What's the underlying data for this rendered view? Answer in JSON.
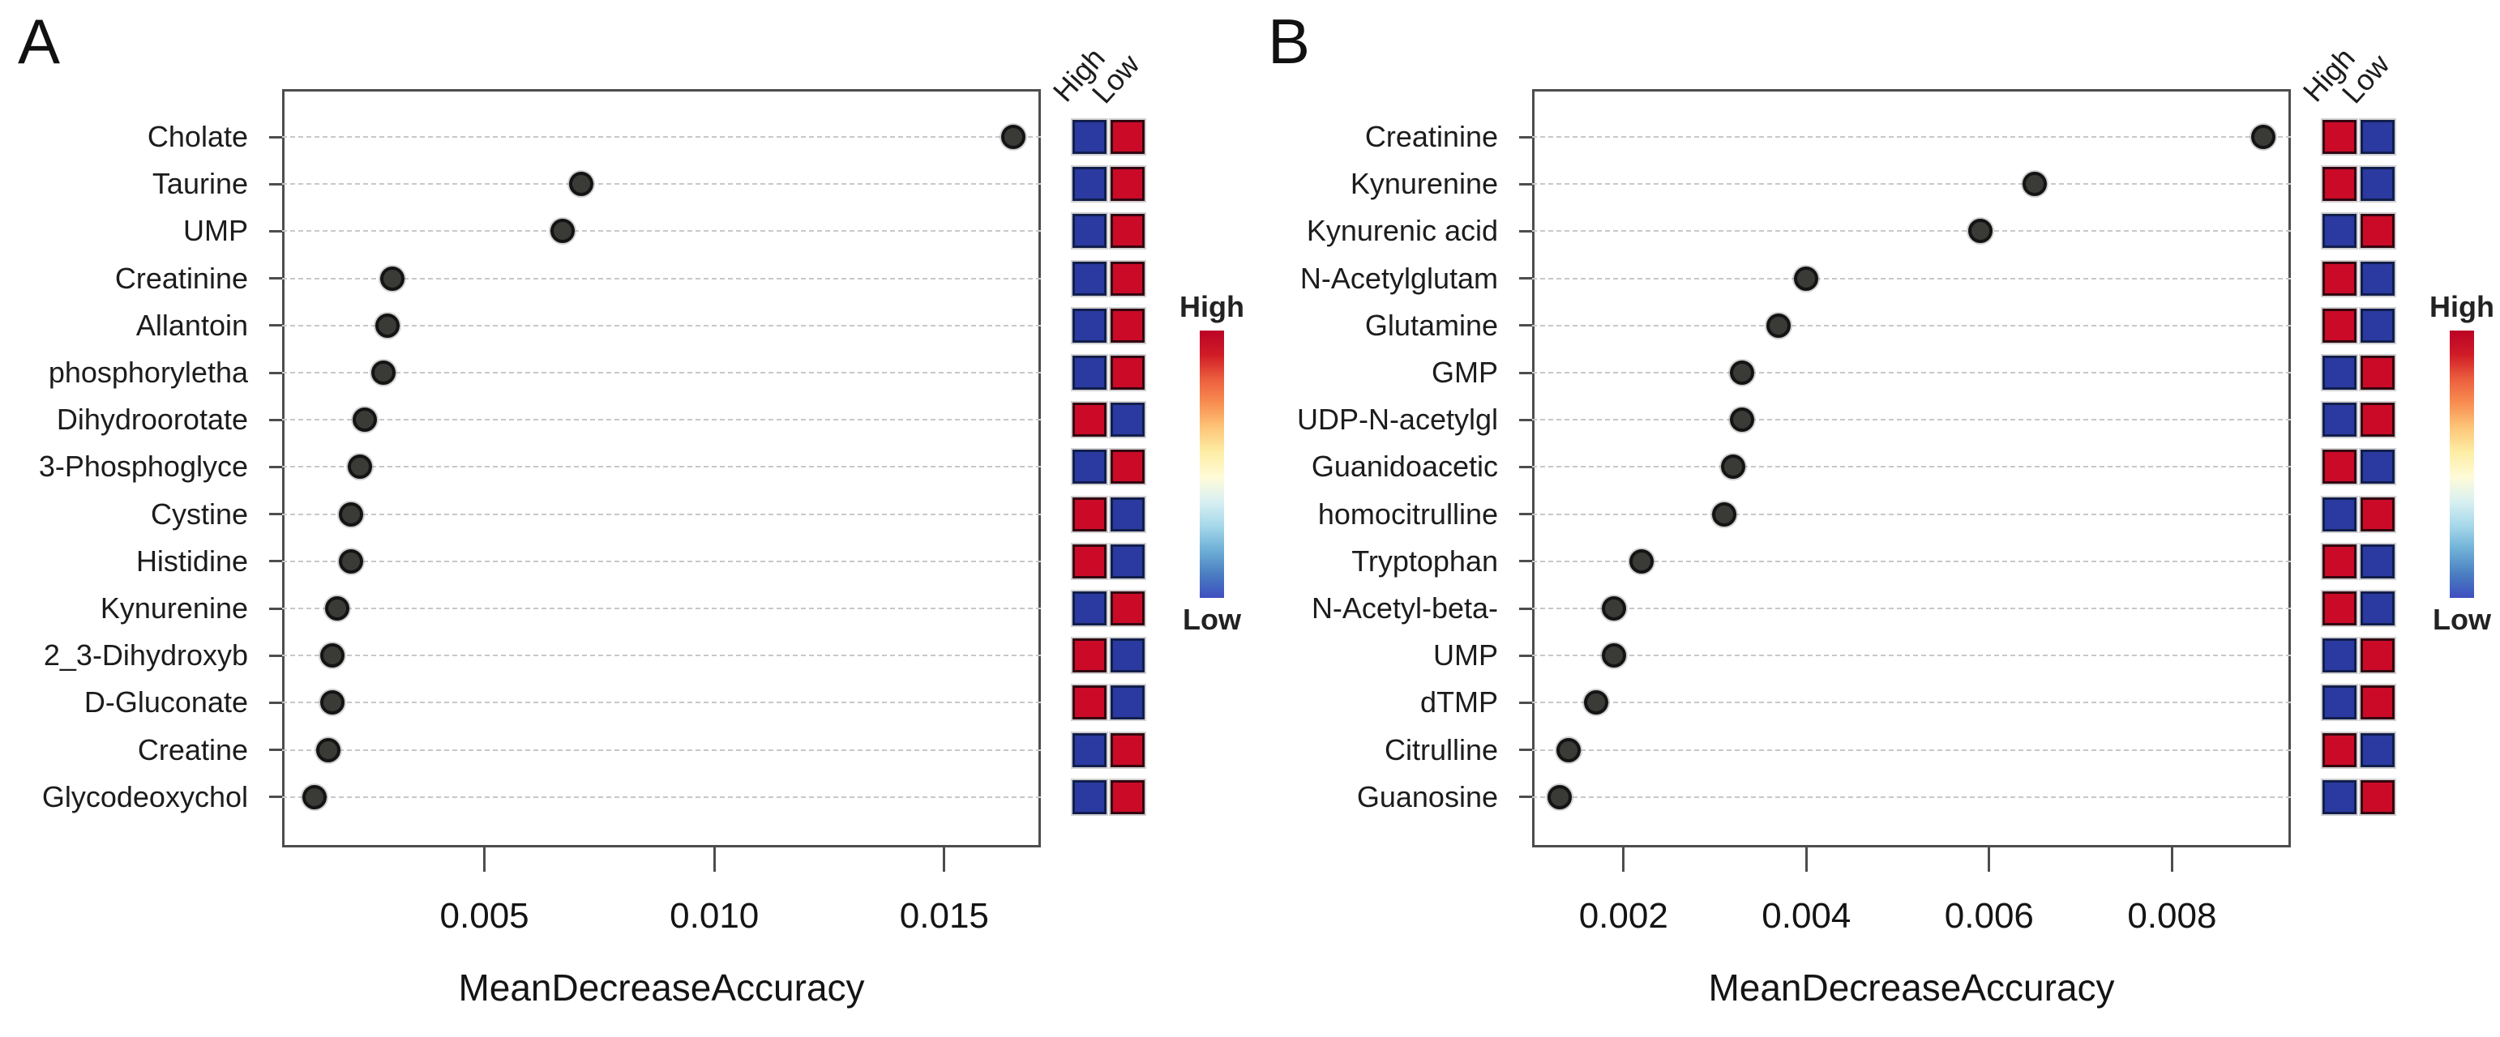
{
  "colors": {
    "red": "#cb0a28",
    "blue": "#2b3aa0",
    "red_border": "#330510",
    "blue_border": "#111e4d",
    "dot_fill": "#3a3a36",
    "dot_border": "#141414",
    "grid": "#c8c8c8",
    "box_border": "#4d4d4d",
    "text": "#1c1c1c"
  },
  "legend_gradient": [
    "#bb0226",
    "#cf1c27",
    "#ec5d3e",
    "#f88d51",
    "#fdc478",
    "#fdeca2",
    "#fefbd9",
    "#d9f0f2",
    "#a6d8ea",
    "#6fb0d7",
    "#4b7fc1",
    "#3e4fc0"
  ],
  "chart_data": [
    {
      "type": "dot",
      "panel_letter": "A",
      "xlabel": "MeanDecreaseAccuracy",
      "col_headers": [
        "High",
        "Low"
      ],
      "legend_high": "High",
      "legend_low": "Low",
      "xlim": [
        0.0006,
        0.0171
      ],
      "ticks": [
        0.005,
        0.01,
        0.015
      ],
      "tick_labels": [
        "0.005",
        "0.010",
        "0.015"
      ],
      "grid": "dashed",
      "categories": [
        "Cholate",
        "Taurine",
        "UMP",
        "Creatinine",
        "Allantoin",
        "phosphoryletha",
        "Dihydroorotate",
        "3-Phosphoglyce",
        "Cystine",
        "Histidine",
        "Kynurenine",
        "2_3-Dihydroxyb",
        "D-Gluconate",
        "Creatine",
        "Glycodeoxychol"
      ],
      "values": [
        0.0165,
        0.0071,
        0.0067,
        0.003,
        0.0029,
        0.0028,
        0.0024,
        0.0023,
        0.0021,
        0.0021,
        0.0018,
        0.0017,
        0.0017,
        0.0016,
        0.0013
      ],
      "square_high": [
        "blue",
        "blue",
        "blue",
        "blue",
        "blue",
        "blue",
        "red",
        "blue",
        "red",
        "red",
        "blue",
        "red",
        "red",
        "blue",
        "blue"
      ],
      "square_low": [
        "red",
        "red",
        "red",
        "red",
        "red",
        "red",
        "blue",
        "red",
        "blue",
        "blue",
        "red",
        "blue",
        "blue",
        "red",
        "red"
      ]
    },
    {
      "type": "dot",
      "panel_letter": "B",
      "xlabel": "MeanDecreaseAccuracy",
      "col_headers": [
        "High",
        "Low"
      ],
      "legend_high": "High",
      "legend_low": "Low",
      "xlim": [
        0.001,
        0.0093
      ],
      "ticks": [
        0.002,
        0.004,
        0.006,
        0.008
      ],
      "tick_labels": [
        "0.002",
        "0.004",
        "0.006",
        "0.008"
      ],
      "grid": "dashed",
      "categories": [
        "Creatinine",
        "Kynurenine",
        "Kynurenic acid",
        "N-Acetylglutam",
        "Glutamine",
        "GMP",
        "UDP-N-acetylgl",
        "Guanidoacetic",
        "homocitrulline",
        "Tryptophan",
        "N-Acetyl-beta-",
        "UMP",
        "dTMP",
        "Citrulline",
        "Guanosine"
      ],
      "values": [
        0.009,
        0.0065,
        0.0059,
        0.004,
        0.0037,
        0.0033,
        0.0033,
        0.0032,
        0.0031,
        0.0022,
        0.0019,
        0.0019,
        0.0017,
        0.0014,
        0.0013
      ],
      "square_high": [
        "red",
        "red",
        "blue",
        "red",
        "red",
        "blue",
        "blue",
        "red",
        "blue",
        "red",
        "red",
        "blue",
        "blue",
        "red",
        "blue"
      ],
      "square_low": [
        "blue",
        "blue",
        "red",
        "blue",
        "blue",
        "red",
        "red",
        "blue",
        "red",
        "blue",
        "blue",
        "red",
        "red",
        "blue",
        "red"
      ]
    }
  ]
}
